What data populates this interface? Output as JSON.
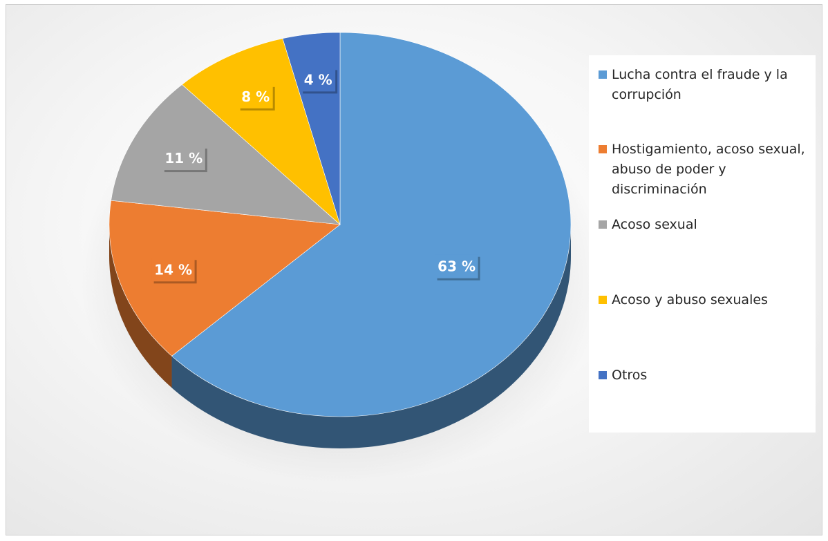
{
  "chart_data": {
    "type": "pie",
    "style": "3d",
    "legend_position": "right",
    "slices": [
      {
        "label": "Lucha contra el fraude y la corrupción",
        "value": 63,
        "value_label": "63 %",
        "color": "#5B9BD5"
      },
      {
        "label": "Hostigamiento, acoso sexual, abuso de poder y discriminación",
        "value": 14,
        "value_label": "14 %",
        "color": "#ED7D31"
      },
      {
        "label": "Acoso sexual",
        "value": 11,
        "value_label": "11 %",
        "color": "#A5A5A5"
      },
      {
        "label": "Acoso y abuso sexuales",
        "value": 8,
        "value_label": "8 %",
        "color": "#FFC000"
      },
      {
        "label": "Otros",
        "value": 4,
        "value_label": "4 %",
        "color": "#4472C4"
      }
    ]
  }
}
